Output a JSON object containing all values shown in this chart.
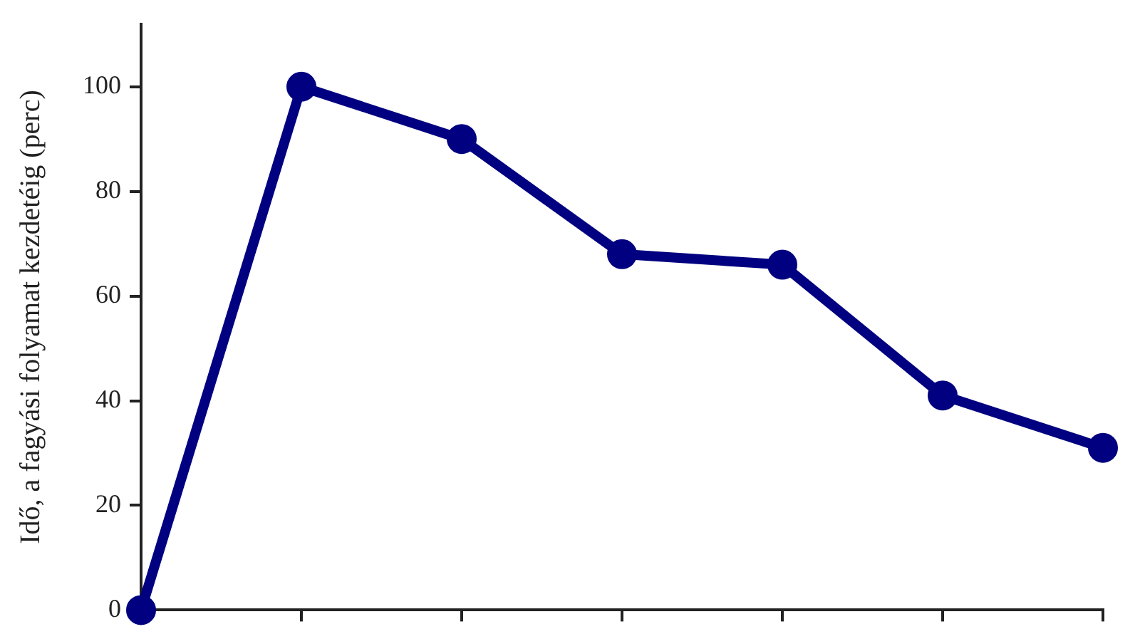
{
  "chart_data": {
    "type": "line",
    "ylabel": "Idő, a fagyási folyamat kezdetéig (perc)",
    "categories": [
      null,
      null,
      null,
      null,
      null,
      null,
      null
    ],
    "series": [
      {
        "color": "#000080",
        "values": [
          0,
          100,
          90,
          68,
          66,
          41,
          31
        ]
      }
    ],
    "ylim": [
      0,
      112
    ],
    "yticks": [
      0,
      20,
      40,
      60,
      80,
      100
    ],
    "tick_labels": "y",
    "marker": "circle",
    "line_style": "solid",
    "grid": false,
    "legend": false
  }
}
